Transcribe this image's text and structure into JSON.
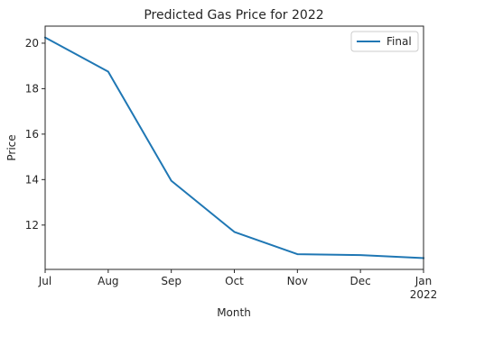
{
  "chart_data": {
    "type": "line",
    "title": "Predicted Gas Price for 2022",
    "xlabel": "Month",
    "ylabel": "Price",
    "categories": [
      "Jul",
      "Aug",
      "Sep",
      "Oct",
      "Nov",
      "Dec",
      "Jan"
    ],
    "x_tick_sublabels": [
      "",
      "",
      "",
      "",
      "",
      "",
      "2022"
    ],
    "series": [
      {
        "name": "Final",
        "values": [
          20.25,
          18.75,
          13.95,
          11.7,
          10.72,
          10.68,
          10.55
        ],
        "color": "#1f77b4"
      }
    ],
    "ylim": [
      10.05,
      20.75
    ],
    "yticks": [
      12,
      14,
      16,
      18,
      20
    ],
    "ytick_labels": [
      "12",
      "14",
      "16",
      "18",
      "20"
    ],
    "grid": false,
    "legend_position": "top-right"
  }
}
